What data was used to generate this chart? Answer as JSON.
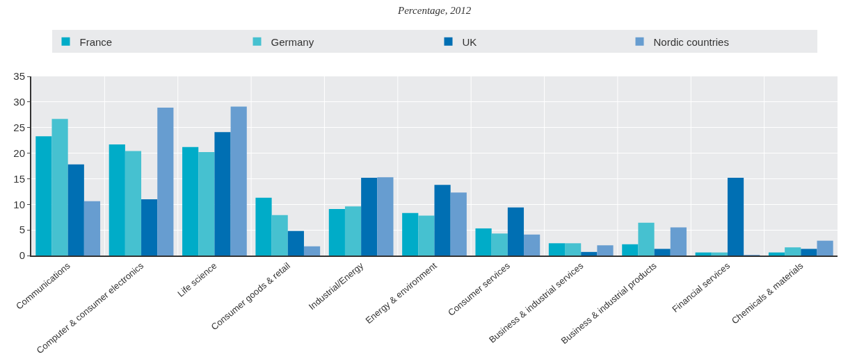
{
  "chart_data": {
    "type": "bar",
    "subtitle": "Percentage, 2012",
    "categories": [
      "Communications",
      "Computer & consumer electronics",
      "Life science",
      "Consumer goods & retail",
      "Industrial/Energy",
      "Energy & environment",
      "Consumer services",
      "Business & industrial services",
      "Business & industrial products",
      "Financial services",
      "Chemicals & materials"
    ],
    "series": [
      {
        "name": "France",
        "color": "#00acc8",
        "values": [
          23.3,
          21.7,
          21.2,
          11.3,
          9.1,
          8.3,
          5.3,
          2.4,
          2.2,
          0.6,
          0.6
        ]
      },
      {
        "name": "Germany",
        "color": "#46c1d0",
        "values": [
          26.7,
          20.4,
          20.2,
          7.9,
          9.6,
          7.8,
          4.3,
          2.4,
          6.4,
          0.6,
          1.6
        ]
      },
      {
        "name": "UK",
        "color": "#006fb3",
        "values": [
          17.8,
          11.0,
          24.1,
          4.8,
          15.2,
          13.8,
          9.4,
          0.7,
          1.3,
          15.2,
          1.3
        ]
      },
      {
        "name": "Nordic countries",
        "color": "#679dd0",
        "values": [
          10.6,
          28.9,
          29.1,
          1.8,
          15.3,
          12.3,
          4.1,
          2.0,
          5.5,
          0.1,
          2.9
        ]
      }
    ],
    "ylim": [
      0,
      35
    ],
    "yticks": [
      0,
      5,
      10,
      15,
      20,
      25,
      30,
      35
    ],
    "grid": true,
    "legend": "top"
  }
}
